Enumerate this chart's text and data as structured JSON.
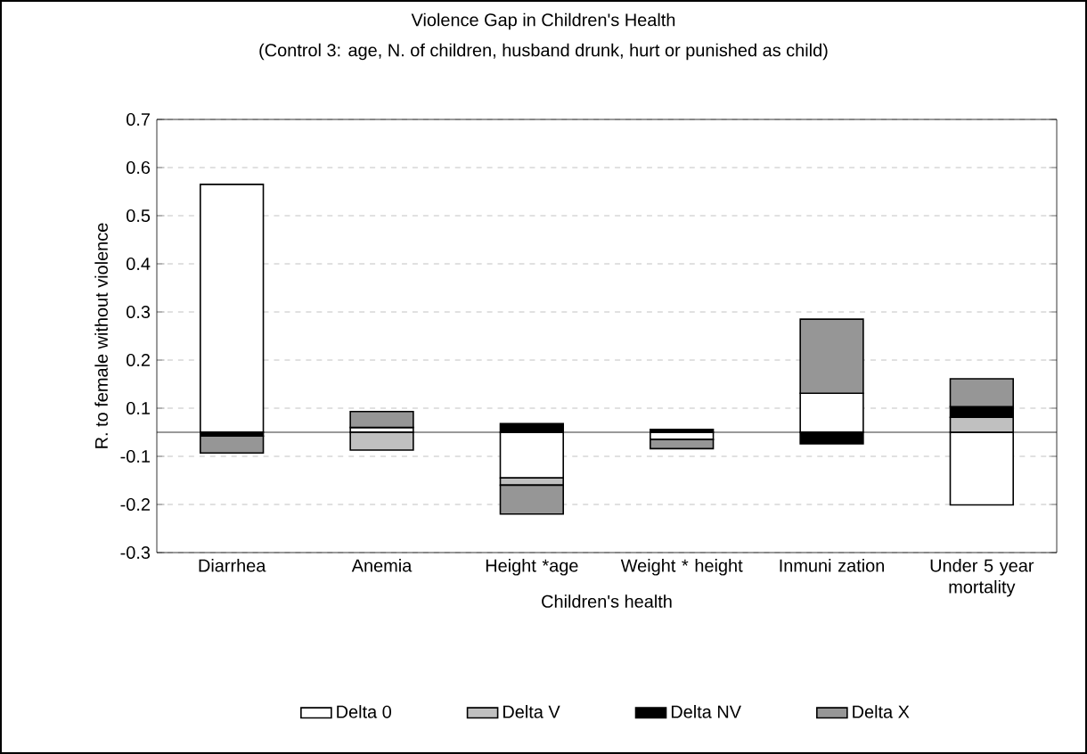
{
  "chart_data": {
    "type": "bar",
    "stacked": true,
    "title": "Violence Gap in Children's Health",
    "subtitle": "(Control 3: age, N. of children, husband drunk, hurt or punished as child)",
    "xlabel": "Children's health",
    "ylabel": "R. to female without violence",
    "categories": [
      "Diarrhea",
      "Anemia",
      "Height *age",
      "Weight * height",
      "Inmuni zation",
      "Under 5 year mortality"
    ],
    "series": [
      {
        "name": "Delta 0",
        "color": "#ffffff",
        "values": [
          0.515,
          0.01,
          -0.095,
          -0.015,
          0.081,
          -0.151
        ]
      },
      {
        "name": "Delta V",
        "color": "#c0c0c0",
        "values": [
          null,
          -0.037,
          -0.015,
          null,
          null,
          0.031
        ]
      },
      {
        "name": "Delta NV",
        "color": "#000000",
        "values": [
          -0.008,
          null,
          0.018,
          0.006,
          -0.024,
          0.022
        ]
      },
      {
        "name": "Delta X",
        "color": "#969696",
        "values": [
          -0.035,
          0.033,
          -0.06,
          -0.019,
          0.154,
          0.058
        ]
      }
    ],
    "ylim": [
      -0.25,
      0.65
    ],
    "yticks": [
      {
        "value": 0.65,
        "label": "0.7"
      },
      {
        "value": 0.55,
        "label": "0.6"
      },
      {
        "value": 0.45,
        "label": "0.5"
      },
      {
        "value": 0.35,
        "label": "0.4"
      },
      {
        "value": 0.25,
        "label": "0.3"
      },
      {
        "value": 0.15,
        "label": "0.2"
      },
      {
        "value": 0.05,
        "label": "0.1"
      },
      {
        "value": -0.05,
        "label": "-0.1"
      },
      {
        "value": -0.15,
        "label": "-0.2"
      },
      {
        "value": -0.25,
        "label": "-0.3"
      }
    ],
    "grid": "y",
    "legend": "bottom"
  }
}
